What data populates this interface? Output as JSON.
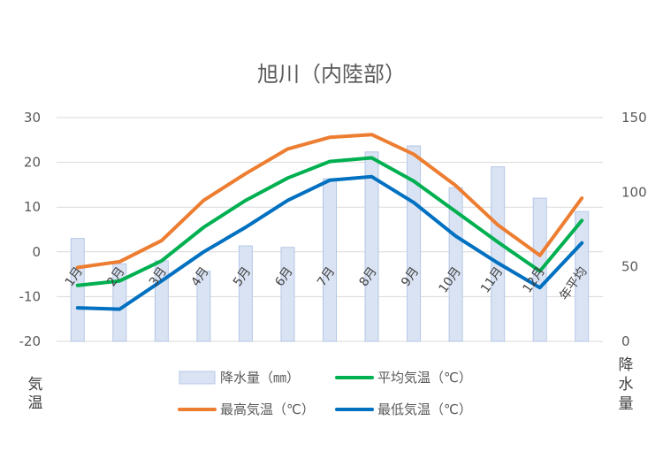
{
  "chart_data": {
    "type": "bar+line",
    "title": "旭川（内陸部）",
    "categories": [
      "1月",
      "2月",
      "3月",
      "4月",
      "5月",
      "6月",
      "7月",
      "8月",
      "9月",
      "10月",
      "11月",
      "12月",
      "年平均"
    ],
    "left_axis": {
      "label": [
        "気",
        "温"
      ],
      "ticks": [
        "30",
        "20",
        "10",
        "0",
        "-10",
        "-20"
      ],
      "ylim": [
        -20,
        30
      ]
    },
    "right_axis": {
      "label": [
        "降",
        "水",
        "量"
      ],
      "ticks": [
        "150",
        "100",
        "50",
        "0"
      ],
      "ylim": [
        0,
        150
      ]
    },
    "grid": "horizontal",
    "legend_position": "bottom",
    "bar_series": {
      "name": "降水量（㎜）",
      "color": "#dae3f3",
      "stroke": "#b4c7e7",
      "values": [
        69,
        52,
        54,
        47,
        64,
        63,
        109,
        127,
        131,
        103,
        117,
        96,
        87
      ]
    },
    "line_series": [
      {
        "name": "平均気温（℃）",
        "color": "#00b050",
        "values": [
          -7.5,
          -6.5,
          -2.0,
          5.5,
          11.5,
          16.5,
          20.2,
          21.0,
          15.8,
          9.0,
          2.2,
          -4.3,
          7.0
        ]
      },
      {
        "name": "最高気温（℃）",
        "color": "#ed7d31",
        "values": [
          -3.5,
          -2.2,
          2.5,
          11.5,
          17.5,
          23.0,
          25.6,
          26.2,
          21.8,
          14.8,
          6.0,
          -0.8,
          12.0
        ]
      },
      {
        "name": "最低気温（℃）",
        "color": "#0070c0",
        "values": [
          -12.5,
          -12.8,
          -6.5,
          0.0,
          5.5,
          11.5,
          16.0,
          16.8,
          11.0,
          3.5,
          -2.5,
          -8.0,
          2.0
        ]
      }
    ],
    "legend_order": [
      0,
      1,
      2,
      3
    ]
  }
}
